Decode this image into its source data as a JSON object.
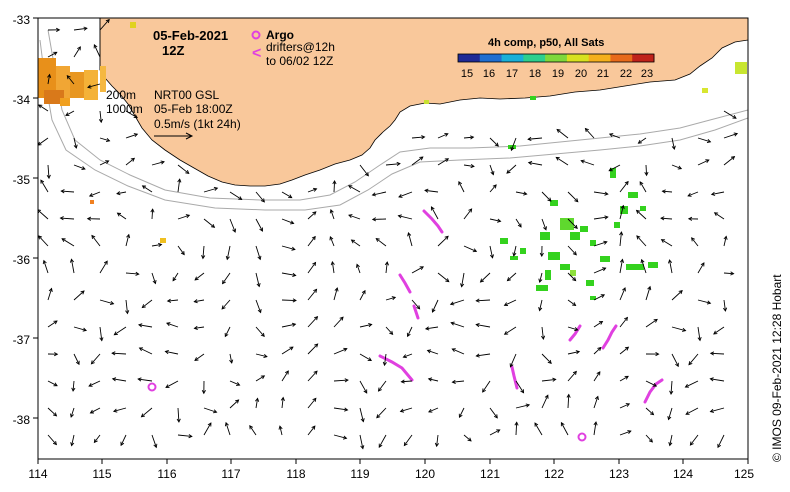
{
  "map": {
    "lon_range": [
      114,
      125
    ],
    "lat_range": [
      -38.5,
      -33
    ],
    "x_ticks": [
      "114",
      "115",
      "116",
      "117",
      "118",
      "119",
      "120",
      "121",
      "122",
      "123",
      "124",
      "125"
    ],
    "y_ticks": [
      "-33",
      "-34",
      "-35",
      "-36",
      "-37",
      "-38"
    ],
    "colors": {
      "land": "#f9c89b",
      "coast": "#000000",
      "isobath": "#aaaaaa",
      "argo": "#e040e0",
      "drifter": "#e040e0",
      "sst_green": "#34d21e",
      "sst_warm": "#e8901a"
    }
  },
  "header": {
    "date": "05-Feb-2021",
    "time": "12Z"
  },
  "legend": {
    "argo_label": "Argo",
    "drifters_line1": "drifters@12h",
    "drifters_line2": "to 06/02 12Z",
    "drifter_symbol": "<"
  },
  "annotations": {
    "isobath_200": "200m",
    "isobath_1000": "1000m",
    "model_line1": "NRT00 GSL",
    "model_line2": "05-Feb 18:00Z",
    "scale_label": "0.5m/s (1kt 24h)"
  },
  "colorbar": {
    "title": "4h comp, p50, All Sats",
    "ticks": [
      "15",
      "16",
      "17",
      "18",
      "19",
      "20",
      "21",
      "22",
      "23"
    ],
    "colors": [
      "#1e2a96",
      "#1f6fd1",
      "#19b0d8",
      "#2dcf8e",
      "#7fd83b",
      "#d8e21f",
      "#f5b01c",
      "#e86a1a",
      "#c0221a"
    ]
  },
  "credit": "© IMOS 09-Feb-2021 12:28 Hobart"
}
